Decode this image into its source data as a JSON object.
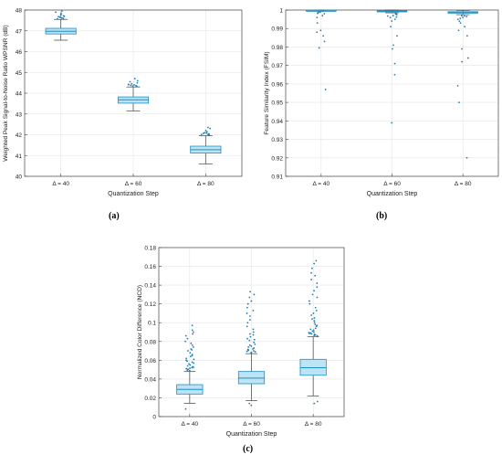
{
  "chart_data": [
    {
      "type": "box",
      "panel_label": "(a)",
      "categories": [
        "Δ = 40",
        "Δ = 60",
        "Δ = 80"
      ],
      "xlabel": "Quantization Step",
      "ylabel": "Weighted Peak Signal-to-Noise Ratio WPSNR (dB)",
      "ylim": [
        40,
        48
      ],
      "yticks": [
        "40",
        "41",
        "42",
        "43",
        "44",
        "45",
        "46",
        "47",
        "48"
      ],
      "grid": true,
      "boxes": [
        {
          "category": "Δ = 40",
          "whisker_low": 46.55,
          "q1": 46.85,
          "median": 46.98,
          "q3": 47.12,
          "whisker_high": 47.55,
          "outliers": [
            47.58,
            47.6,
            47.62,
            47.65,
            47.68,
            47.7,
            47.72,
            47.75,
            47.8,
            47.85,
            47.9,
            47.95,
            47.62,
            47.66
          ]
        },
        {
          "category": "Δ = 60",
          "whisker_low": 43.15,
          "q1": 43.52,
          "median": 43.68,
          "q3": 43.82,
          "whisker_high": 44.3,
          "outliers": [
            44.33,
            44.35,
            44.38,
            44.4,
            44.42,
            44.45,
            44.5,
            44.55,
            44.6,
            44.7,
            44.36,
            44.41
          ]
        },
        {
          "category": "Δ = 80",
          "whisker_low": 40.6,
          "q1": 41.12,
          "median": 41.28,
          "q3": 41.45,
          "whisker_high": 41.95,
          "outliers": [
            41.98,
            42.0,
            42.02,
            42.05,
            42.08,
            42.1,
            42.15,
            42.2,
            42.3,
            42.35,
            42.01,
            42.06
          ]
        }
      ]
    },
    {
      "type": "box",
      "panel_label": "(b)",
      "categories": [
        "Δ = 40",
        "Δ = 60",
        "Δ = 80"
      ],
      "xlabel": "Quantization Step",
      "ylabel": "Feature Similarity Index (FSIM)",
      "ylim": [
        0.91,
        1
      ],
      "yticks": [
        "0.91",
        "0.92",
        "0.93",
        "0.94",
        "0.95",
        "0.96",
        "0.97",
        "0.98",
        "0.99",
        "1"
      ],
      "grid": true,
      "boxes": [
        {
          "category": "Δ = 40",
          "whisker_low": 0.9995,
          "q1": 0.9997,
          "median": 0.9998,
          "q3": 0.9999,
          "whisker_high": 1.0,
          "outliers": [
            0.9993,
            0.999,
            0.9985,
            0.998,
            0.997,
            0.996,
            0.993,
            0.989,
            0.988,
            0.986,
            0.983,
            0.9795,
            0.957,
            0.9988,
            0.9982
          ]
        },
        {
          "category": "Δ = 60",
          "whisker_low": 0.9985,
          "q1": 0.999,
          "median": 0.9993,
          "q3": 0.9996,
          "whisker_high": 1.0,
          "outliers": [
            0.998,
            0.9975,
            0.997,
            0.996,
            0.995,
            0.994,
            0.991,
            0.986,
            0.981,
            0.979,
            0.971,
            0.965,
            0.939,
            0.9968,
            0.9962,
            0.9978
          ]
        },
        {
          "category": "Δ = 80",
          "whisker_low": 0.9975,
          "q1": 0.9983,
          "median": 0.9988,
          "q3": 0.9991,
          "whisker_high": 0.9998,
          "outliers": [
            0.997,
            0.9965,
            0.996,
            0.995,
            0.994,
            0.993,
            0.991,
            0.989,
            0.986,
            0.979,
            0.974,
            0.972,
            0.959,
            0.95,
            0.92,
            0.9968,
            0.9955
          ]
        }
      ]
    },
    {
      "type": "box",
      "panel_label": "(c)",
      "categories": [
        "Δ = 40",
        "Δ = 60",
        "Δ = 80"
      ],
      "xlabel": "Quantization Step",
      "ylabel": "Normalized Color Difference (NCD)",
      "ylim": [
        0,
        0.18
      ],
      "yticks": [
        "0",
        "0.02",
        "0.04",
        "0.06",
        "0.08",
        "0.1",
        "0.12",
        "0.14",
        "0.16",
        "0.18"
      ],
      "grid": true,
      "boxes": [
        {
          "category": "Δ = 40",
          "whisker_low": 0.014,
          "q1": 0.024,
          "median": 0.029,
          "q3": 0.034,
          "whisker_high": 0.048,
          "outliers": [
            0.049,
            0.05,
            0.051,
            0.052,
            0.053,
            0.054,
            0.055,
            0.056,
            0.057,
            0.058,
            0.06,
            0.061,
            0.062,
            0.064,
            0.066,
            0.068,
            0.07,
            0.072,
            0.074,
            0.076,
            0.078,
            0.08,
            0.083,
            0.086,
            0.088,
            0.09,
            0.092,
            0.097,
            0.008,
            0.0495,
            0.0505,
            0.0515,
            0.0525,
            0.059,
            0.065,
            0.071
          ]
        },
        {
          "category": "Δ = 60",
          "whisker_low": 0.017,
          "q1": 0.035,
          "median": 0.041,
          "q3": 0.048,
          "whisker_high": 0.067,
          "outliers": [
            0.068,
            0.069,
            0.07,
            0.071,
            0.072,
            0.073,
            0.074,
            0.075,
            0.077,
            0.079,
            0.081,
            0.083,
            0.085,
            0.088,
            0.09,
            0.093,
            0.096,
            0.1,
            0.103,
            0.107,
            0.11,
            0.113,
            0.116,
            0.12,
            0.123,
            0.127,
            0.13,
            0.133,
            0.012,
            0.014,
            0.0685,
            0.0695,
            0.0705,
            0.0715,
            0.076,
            0.082,
            0.087
          ]
        },
        {
          "category": "Δ = 80",
          "whisker_low": 0.022,
          "q1": 0.044,
          "median": 0.052,
          "q3": 0.061,
          "whisker_high": 0.085,
          "outliers": [
            0.086,
            0.087,
            0.088,
            0.089,
            0.09,
            0.091,
            0.092,
            0.094,
            0.096,
            0.098,
            0.1,
            0.102,
            0.105,
            0.108,
            0.11,
            0.113,
            0.116,
            0.12,
            0.123,
            0.127,
            0.13,
            0.134,
            0.138,
            0.142,
            0.146,
            0.15,
            0.153,
            0.158,
            0.163,
            0.166,
            0.016,
            0.014,
            0.0865,
            0.0875,
            0.0885,
            0.0895,
            0.093,
            0.097,
            0.104
          ]
        }
      ]
    }
  ],
  "colors": {
    "box_fill": "#bde4f4",
    "box_edge": "#1a8fc8",
    "median": "#1a8fc8",
    "whisker": "#555555",
    "outlier": "#1a7fb5",
    "grid": "#e4e4e4",
    "axis": "#444444",
    "text": "#222222"
  }
}
